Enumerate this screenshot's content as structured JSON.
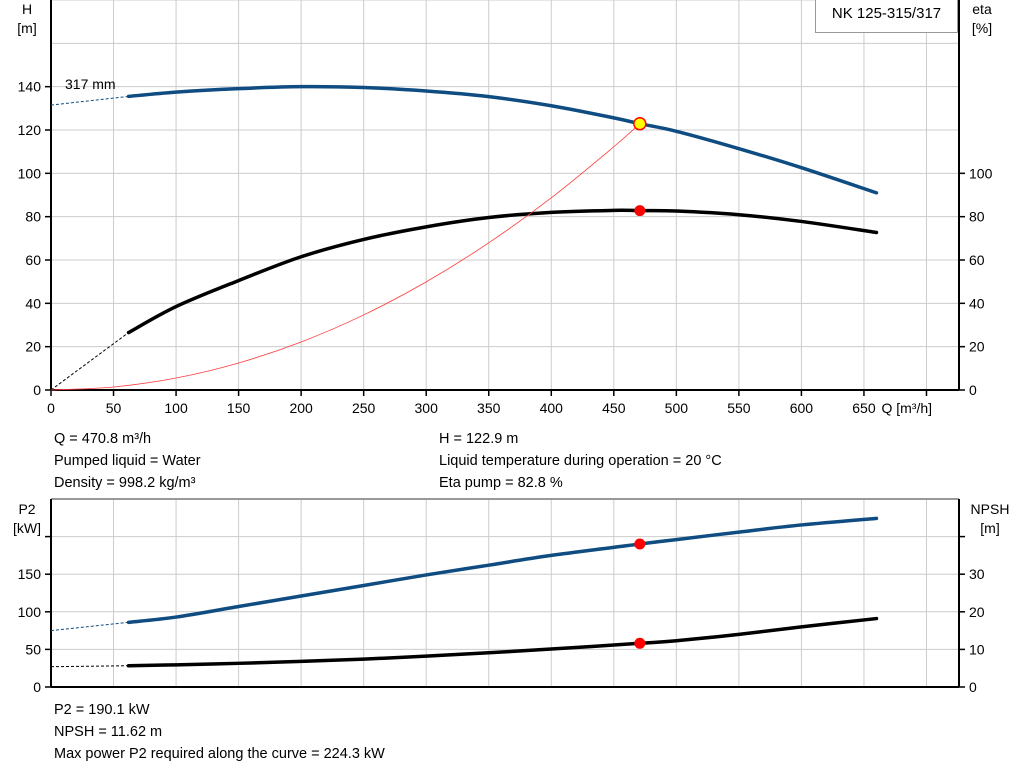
{
  "title": "NK 125-315/317",
  "impeller_label": "317 mm",
  "colors": {
    "head": "#0f4c81",
    "eta": "#000000",
    "p2": "#0f4c81",
    "npsh": "#000000",
    "system": "#ff3b3b",
    "duty_point": "#ff0000",
    "duty_point_fill_top": "#ffff00",
    "grid": "#cccccc"
  },
  "info_top": {
    "left": [
      "Q = 470.8 m³/h",
      "Pumped liquid = Water",
      "Density = 998.2 kg/m³"
    ],
    "right": [
      "H = 122.9 m",
      "Liquid temperature during operation = 20 °C",
      "Eta pump = 82.8 %"
    ]
  },
  "info_bottom": [
    "P2 = 190.1 kW",
    "NPSH = 11.62 m",
    "Max power P2 required along the curve = 224.3 kW"
  ],
  "chart_data": [
    {
      "type": "line",
      "xlabel": "Q [m³/h]",
      "ylabel_left": [
        "H",
        "[m]"
      ],
      "ylabel_right": [
        "eta",
        "[%]"
      ],
      "xlim": [
        0,
        726
      ],
      "xticks": [
        0,
        50,
        100,
        150,
        200,
        250,
        300,
        350,
        400,
        450,
        500,
        550,
        600,
        650,
        700
      ],
      "xtick_labels": [
        "0",
        "50",
        "100",
        "150",
        "200",
        "250",
        "300",
        "350",
        "400",
        "450",
        "500",
        "550",
        "600",
        "650"
      ],
      "ylim_left": [
        0,
        180
      ],
      "yticks_left": [
        0,
        20,
        40,
        60,
        80,
        100,
        120,
        140
      ],
      "ylim_right": [
        0,
        180
      ],
      "yticks_right": [
        0,
        20,
        40,
        60,
        80,
        100
      ],
      "grid": true,
      "series": [
        {
          "key": "head",
          "axis": "left",
          "extrapolated": [
            [
              0,
              131.5
            ],
            [
              62,
              135.5
            ]
          ],
          "points": [
            [
              62,
              135.5
            ],
            [
              100,
              137.5
            ],
            [
              150,
              139.1
            ],
            [
              200,
              140
            ],
            [
              250,
              139.6
            ],
            [
              300,
              138
            ],
            [
              350,
              135.4
            ],
            [
              400,
              131.2
            ],
            [
              450,
              125.6
            ],
            [
              470.8,
              122.9
            ],
            [
              500,
              119.4
            ],
            [
              550,
              111.4
            ],
            [
              600,
              102.6
            ],
            [
              660,
              91
            ]
          ]
        },
        {
          "key": "eta",
          "axis": "right",
          "extrapolated": [
            [
              0,
              0
            ],
            [
              62,
              26.5
            ]
          ],
          "points": [
            [
              62,
              26.5
            ],
            [
              100,
              38.5
            ],
            [
              150,
              50.5
            ],
            [
              200,
              61.5
            ],
            [
              250,
              69.5
            ],
            [
              300,
              75.3
            ],
            [
              350,
              79.6
            ],
            [
              400,
              82
            ],
            [
              450,
              82.9
            ],
            [
              470.8,
              82.8
            ],
            [
              500,
              82.6
            ],
            [
              550,
              80.9
            ],
            [
              600,
              77.8
            ],
            [
              660,
              72.7
            ]
          ]
        },
        {
          "key": "system",
          "axis": "left",
          "points": [
            [
              0,
              0
            ],
            [
              50,
              1.39
            ],
            [
              100,
              5.54
            ],
            [
              150,
              12.48
            ],
            [
              200,
              22.18
            ],
            [
              250,
              34.65
            ],
            [
              300,
              49.9
            ],
            [
              350,
              67.92
            ],
            [
              400,
              88.7
            ],
            [
              450,
              112.27
            ],
            [
              470.8,
              122.9
            ]
          ]
        }
      ],
      "duty_points": [
        {
          "key": "head",
          "q": 470.8,
          "value": 122.9
        },
        {
          "key": "eta",
          "q": 470.8,
          "value": 82.8
        }
      ]
    },
    {
      "type": "line",
      "ylabel_left": [
        "P2",
        "[kW]"
      ],
      "ylabel_right": [
        "NPSH",
        "[m]"
      ],
      "xlim": [
        0,
        726
      ],
      "xticks": [
        0,
        50,
        100,
        150,
        200,
        250,
        300,
        350,
        400,
        450,
        500,
        550,
        600,
        650,
        700
      ],
      "ylim_left": [
        0,
        250
      ],
      "yticks_left": [
        0,
        50,
        100,
        150,
        200
      ],
      "ytick_labels_left": [
        "0",
        "50",
        "100",
        "150"
      ],
      "ylim_right": [
        0,
        50
      ],
      "yticks_right": [
        0,
        10,
        20,
        30,
        40
      ],
      "ytick_labels_right": [
        "0",
        "10",
        "20",
        "30"
      ],
      "grid": true,
      "series": [
        {
          "key": "p2",
          "axis": "left",
          "extrapolated": [
            [
              0,
              75
            ],
            [
              62,
              86
            ]
          ],
          "points": [
            [
              62,
              86
            ],
            [
              100,
              93
            ],
            [
              150,
              107
            ],
            [
              200,
              121
            ],
            [
              250,
              135
            ],
            [
              300,
              149
            ],
            [
              350,
              162
            ],
            [
              400,
              175
            ],
            [
              470.8,
              190.1
            ],
            [
              500,
              196
            ],
            [
              550,
              206
            ],
            [
              600,
              215.5
            ],
            [
              660,
              224.3
            ]
          ]
        },
        {
          "key": "npsh",
          "axis": "right",
          "extrapolated": [
            [
              0,
              5.4
            ],
            [
              62,
              5.65
            ]
          ],
          "points": [
            [
              62,
              5.65
            ],
            [
              100,
              5.9
            ],
            [
              150,
              6.3
            ],
            [
              200,
              6.8
            ],
            [
              250,
              7.4
            ],
            [
              300,
              8.2
            ],
            [
              350,
              9.1
            ],
            [
              400,
              10.1
            ],
            [
              470.8,
              11.62
            ],
            [
              500,
              12.3
            ],
            [
              550,
              14
            ],
            [
              600,
              16
            ],
            [
              660,
              18.2
            ]
          ]
        }
      ],
      "duty_points": [
        {
          "key": "p2",
          "q": 470.8,
          "value": 190.1
        },
        {
          "key": "npsh",
          "q": 470.8,
          "value": 11.62
        }
      ]
    }
  ]
}
